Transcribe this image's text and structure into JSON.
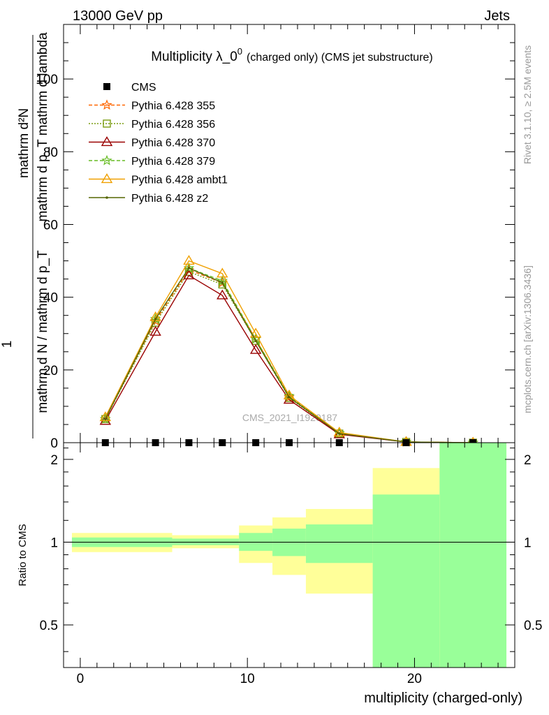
{
  "header": {
    "left": "13000 GeV pp",
    "right": "Jets"
  },
  "side": {
    "rivet": "Rivet 3.1.10, ≥ 2.5M events",
    "mcplots": "mcplots.cern.ch [arXiv:1306.3436]"
  },
  "chart_data": [
    {
      "type": "line",
      "title": "Multiplicity λ_0",
      "title_sup": "0",
      "title_suffix": "(charged only) (CMS jet substructure)",
      "watermark": "CMS_2021_I1920187",
      "ylabel_numer": "mathrm d²N",
      "ylabel_denom": "mathrm d p_T mathrm d lambda",
      "ylabel_left": "mathrm d N / mathrm d p_T",
      "ylabel_one": "1",
      "xlim": [
        -1,
        26
      ],
      "ylim": [
        0,
        115
      ],
      "yticks": [
        20,
        40,
        60,
        80,
        100
      ],
      "x": [
        1.5,
        4.5,
        6.5,
        8.5,
        10.5,
        12.5,
        15.5,
        19.5,
        23.5
      ],
      "cms": [
        0,
        0,
        0,
        0,
        0,
        0,
        0,
        0,
        0
      ],
      "series": [
        {
          "name": "Pythia 6.428 355",
          "color": "#ff6600",
          "marker": "star",
          "dash": "5,3",
          "values": [
            6.5,
            33.5,
            47.5,
            44.0,
            28.5,
            12.5,
            2.6,
            0.2,
            0.0
          ]
        },
        {
          "name": "Pythia 6.428 356",
          "color": "#7a9c10",
          "marker": "square",
          "dash": "2,2",
          "values": [
            6.5,
            33.0,
            47.0,
            43.5,
            28.0,
            12.3,
            2.5,
            0.2,
            0.0
          ]
        },
        {
          "name": "Pythia 6.428 370",
          "color": "#990000",
          "marker": "triangle",
          "dash": "",
          "values": [
            6.0,
            30.5,
            46.0,
            40.5,
            25.5,
            11.8,
            2.3,
            0.2,
            0.0
          ]
        },
        {
          "name": "Pythia 6.428 379",
          "color": "#66bb22",
          "marker": "star",
          "dash": "5,3",
          "values": [
            6.5,
            34.0,
            48.0,
            44.5,
            28.5,
            12.8,
            2.6,
            0.2,
            0.0
          ]
        },
        {
          "name": "Pythia 6.428 ambt1",
          "color": "#f0a000",
          "marker": "triangle",
          "dash": "",
          "values": [
            7.0,
            34.5,
            50.0,
            46.5,
            30.0,
            13.0,
            2.8,
            0.2,
            0.0
          ]
        },
        {
          "name": "Pythia 6.428 z2",
          "color": "#556600",
          "marker": "dot",
          "dash": "",
          "values": [
            6.5,
            34.0,
            48.0,
            44.0,
            28.0,
            12.5,
            2.5,
            0.2,
            0.0
          ]
        }
      ]
    },
    {
      "type": "area",
      "ylabel": "Ratio to CMS",
      "xlabel": "multiplicity (charged-only)",
      "xlim": [
        -1,
        26
      ],
      "ylim": [
        0.35,
        2.3
      ],
      "log_y": true,
      "yticks": [
        "0.5",
        "1",
        "2"
      ],
      "xticks": [
        "0",
        "10",
        "20"
      ],
      "reference": 1,
      "bins": [
        {
          "lo": -0.5,
          "hi": 5.5,
          "inner": [
            0.96,
            1.04
          ],
          "outer": [
            0.92,
            1.08
          ]
        },
        {
          "lo": 5.5,
          "hi": 9.5,
          "inner": [
            0.975,
            1.03
          ],
          "outer": [
            0.95,
            1.06
          ]
        },
        {
          "lo": 9.5,
          "hi": 11.5,
          "inner": [
            0.93,
            1.08
          ],
          "outer": [
            0.84,
            1.15
          ]
        },
        {
          "lo": 11.5,
          "hi": 13.5,
          "inner": [
            0.89,
            1.12
          ],
          "outer": [
            0.76,
            1.23
          ]
        },
        {
          "lo": 13.5,
          "hi": 17.5,
          "inner": [
            0.84,
            1.16
          ],
          "outer": [
            0.65,
            1.32
          ]
        },
        {
          "lo": 17.5,
          "hi": 21.5,
          "inner": [
            0.35,
            1.49
          ],
          "outer": [
            0.35,
            1.86
          ]
        },
        {
          "lo": 21.5,
          "hi": 25.5,
          "inner": [
            0.35,
            2.3
          ],
          "outer": [
            0.35,
            2.3
          ]
        }
      ],
      "band_colors": {
        "inner": "#99ff99",
        "outer": "#ffff99"
      }
    }
  ]
}
